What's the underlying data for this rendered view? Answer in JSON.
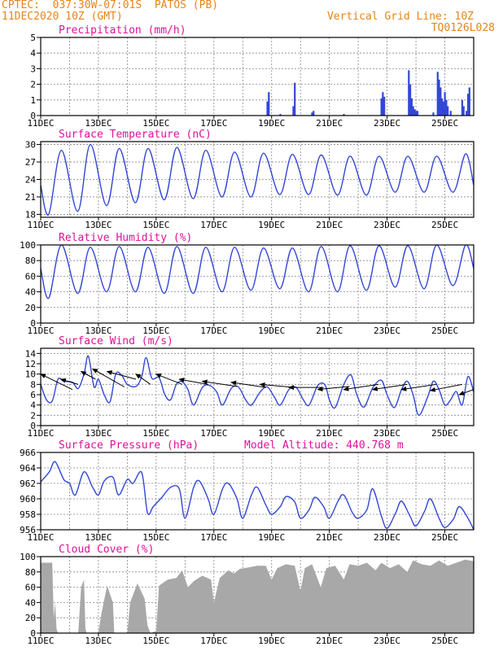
{
  "header": {
    "station_line": "CPTEC:  037:30W-07:01S  PATOS (PB)",
    "date_line": "11DEC2020 10Z (GMT)",
    "grid_line": "Vertical Grid Line: 10Z",
    "code": "TQ0126L028"
  },
  "colors": {
    "header": "#e8841a",
    "title": "#e0109a",
    "series": "#3347d6",
    "cloud": "#a8a8a8",
    "grid": "#888888"
  },
  "x_axis": {
    "start_day": 11,
    "end_day": 26,
    "ticks": [
      "11DEC",
      "13DEC",
      "15DEC",
      "17DEC",
      "19DEC",
      "21DEC",
      "23DEC",
      "25DEC"
    ],
    "tick_days": [
      11,
      13,
      15,
      17,
      19,
      21,
      23,
      25
    ]
  },
  "chart_data": [
    {
      "type": "bar",
      "title": "Precipitation (mm/h)",
      "ylim": [
        0,
        5
      ],
      "yticks": [
        "0",
        "1",
        "2",
        "3",
        "4",
        "5"
      ],
      "bars": [
        {
          "x": 18.85,
          "y": 0.9
        },
        {
          "x": 18.9,
          "y": 1.5
        },
        {
          "x": 19.3,
          "y": 0.1
        },
        {
          "x": 19.75,
          "y": 0.6
        },
        {
          "x": 19.8,
          "y": 2.1
        },
        {
          "x": 20.4,
          "y": 0.2
        },
        {
          "x": 20.45,
          "y": 0.3
        },
        {
          "x": 21.5,
          "y": 0.1
        },
        {
          "x": 22.8,
          "y": 1.1
        },
        {
          "x": 22.85,
          "y": 1.5
        },
        {
          "x": 22.9,
          "y": 1.2
        },
        {
          "x": 23.75,
          "y": 2.9
        },
        {
          "x": 23.8,
          "y": 2.0
        },
        {
          "x": 23.85,
          "y": 1.1
        },
        {
          "x": 23.9,
          "y": 0.6
        },
        {
          "x": 23.95,
          "y": 0.4
        },
        {
          "x": 24.0,
          "y": 0.3
        },
        {
          "x": 24.05,
          "y": 0.3
        },
        {
          "x": 24.6,
          "y": 0.2
        },
        {
          "x": 24.75,
          "y": 2.8
        },
        {
          "x": 24.8,
          "y": 2.3
        },
        {
          "x": 24.85,
          "y": 1.8
        },
        {
          "x": 24.9,
          "y": 1.1
        },
        {
          "x": 24.95,
          "y": 0.9
        },
        {
          "x": 25.0,
          "y": 1.5
        },
        {
          "x": 25.05,
          "y": 1.0
        },
        {
          "x": 25.1,
          "y": 0.6
        },
        {
          "x": 25.2,
          "y": 0.3
        },
        {
          "x": 25.6,
          "y": 1.0
        },
        {
          "x": 25.65,
          "y": 0.6
        },
        {
          "x": 25.75,
          "y": 0.3
        },
        {
          "x": 25.8,
          "y": 1.4
        },
        {
          "x": 25.85,
          "y": 1.8
        }
      ]
    },
    {
      "type": "line",
      "title": "Surface Temperature (nC)",
      "ylim": [
        17.5,
        30.5
      ],
      "yticks": [
        "18",
        "21",
        "24",
        "27",
        "30"
      ],
      "daily_max": [
        29,
        30,
        29.3,
        29.3,
        29.5,
        29,
        28.7,
        28.5,
        28.3,
        28.2,
        28,
        28,
        28,
        28,
        28.4
      ],
      "daily_min": [
        18,
        18.5,
        19.5,
        20,
        20.5,
        20.7,
        21,
        21,
        21.4,
        21.4,
        21.3,
        21.3,
        21.8,
        21.8,
        21.8
      ],
      "start_value": 23
    },
    {
      "type": "line",
      "title": "Relative Humidity (%)",
      "ylim": [
        0,
        100
      ],
      "yticks": [
        "0",
        "20",
        "40",
        "60",
        "80",
        "100"
      ],
      "daily_max": [
        100,
        97,
        98,
        97,
        98,
        97,
        97,
        96,
        96,
        98,
        99,
        99,
        99,
        100,
        100
      ],
      "daily_min": [
        32,
        38,
        40,
        40,
        38,
        38,
        40,
        42,
        44,
        40,
        40,
        42,
        46,
        44,
        48
      ],
      "start_value": 70
    },
    {
      "type": "line",
      "title": "Surface Wind (m/s)",
      "ylim": [
        0,
        15
      ],
      "yticks": [
        "0",
        "2",
        "4",
        "6",
        "8",
        "10",
        "12",
        "14"
      ],
      "series": [
        {
          "x": 11.0,
          "y": 8
        },
        {
          "x": 11.2,
          "y": 5
        },
        {
          "x": 11.4,
          "y": 4.8
        },
        {
          "x": 11.6,
          "y": 9
        },
        {
          "x": 11.8,
          "y": 8.6
        },
        {
          "x": 12.1,
          "y": 8.4
        },
        {
          "x": 12.3,
          "y": 7.2
        },
        {
          "x": 12.5,
          "y": 10
        },
        {
          "x": 12.65,
          "y": 13.5
        },
        {
          "x": 12.85,
          "y": 7.5
        },
        {
          "x": 13.0,
          "y": 9
        },
        {
          "x": 13.2,
          "y": 6
        },
        {
          "x": 13.4,
          "y": 4.6
        },
        {
          "x": 13.6,
          "y": 10
        },
        {
          "x": 13.8,
          "y": 9.8
        },
        {
          "x": 14.0,
          "y": 8
        },
        {
          "x": 14.3,
          "y": 7.6
        },
        {
          "x": 14.5,
          "y": 9.5
        },
        {
          "x": 14.65,
          "y": 13.2
        },
        {
          "x": 14.85,
          "y": 9.2
        },
        {
          "x": 15.1,
          "y": 9.3
        },
        {
          "x": 15.3,
          "y": 6
        },
        {
          "x": 15.5,
          "y": 5
        },
        {
          "x": 15.7,
          "y": 8
        },
        {
          "x": 15.9,
          "y": 8.5
        },
        {
          "x": 16.1,
          "y": 7
        },
        {
          "x": 16.3,
          "y": 4
        },
        {
          "x": 16.6,
          "y": 7.4
        },
        {
          "x": 16.85,
          "y": 7.8
        },
        {
          "x": 17.1,
          "y": 6.5
        },
        {
          "x": 17.3,
          "y": 4
        },
        {
          "x": 17.6,
          "y": 7.2
        },
        {
          "x": 17.85,
          "y": 7.5
        },
        {
          "x": 18.1,
          "y": 5
        },
        {
          "x": 18.3,
          "y": 4
        },
        {
          "x": 18.6,
          "y": 6.5
        },
        {
          "x": 18.85,
          "y": 7.5
        },
        {
          "x": 19.1,
          "y": 5.5
        },
        {
          "x": 19.3,
          "y": 4
        },
        {
          "x": 19.6,
          "y": 7
        },
        {
          "x": 19.85,
          "y": 7.4
        },
        {
          "x": 20.1,
          "y": 5
        },
        {
          "x": 20.3,
          "y": 4
        },
        {
          "x": 20.6,
          "y": 7.8
        },
        {
          "x": 20.85,
          "y": 7.9
        },
        {
          "x": 21.0,
          "y": 5
        },
        {
          "x": 21.2,
          "y": 3.5
        },
        {
          "x": 21.5,
          "y": 8
        },
        {
          "x": 21.75,
          "y": 9.8
        },
        {
          "x": 21.95,
          "y": 6
        },
        {
          "x": 22.2,
          "y": 3.6
        },
        {
          "x": 22.5,
          "y": 7.3
        },
        {
          "x": 22.8,
          "y": 8.8
        },
        {
          "x": 23.0,
          "y": 6
        },
        {
          "x": 23.25,
          "y": 3.5
        },
        {
          "x": 23.5,
          "y": 7
        },
        {
          "x": 23.7,
          "y": 8.6
        },
        {
          "x": 23.9,
          "y": 6
        },
        {
          "x": 24.1,
          "y": 2
        },
        {
          "x": 24.4,
          "y": 5.5
        },
        {
          "x": 24.6,
          "y": 8.6
        },
        {
          "x": 24.8,
          "y": 7
        },
        {
          "x": 25.0,
          "y": 4
        },
        {
          "x": 25.2,
          "y": 5
        },
        {
          "x": 25.4,
          "y": 6.6
        },
        {
          "x": 25.6,
          "y": 4
        },
        {
          "x": 25.8,
          "y": 9.5
        },
        {
          "x": 26.0,
          "y": 6.5
        }
      ],
      "arrows": [
        {
          "x0": 12.1,
          "y0": 7,
          "x1": 11.0,
          "y1": 10
        },
        {
          "x0": 12.3,
          "y0": 8,
          "x1": 11.7,
          "y1": 9
        },
        {
          "x0": 12.9,
          "y0": 9,
          "x1": 12.4,
          "y1": 10.5
        },
        {
          "x0": 13.9,
          "y0": 7.5,
          "x1": 12.8,
          "y1": 11
        },
        {
          "x0": 14.3,
          "y0": 9,
          "x1": 13.3,
          "y1": 10.5
        },
        {
          "x0": 14.8,
          "y0": 8,
          "x1": 14.3,
          "y1": 10
        },
        {
          "x0": 15.9,
          "y0": 8,
          "x1": 15.0,
          "y1": 10
        },
        {
          "x0": 16.8,
          "y0": 8,
          "x1": 15.8,
          "y1": 9
        },
        {
          "x0": 17.8,
          "y0": 7.6,
          "x1": 16.6,
          "y1": 8.6
        },
        {
          "x0": 18.8,
          "y0": 7.4,
          "x1": 17.6,
          "y1": 8.4
        },
        {
          "x0": 19.8,
          "y0": 7.4,
          "x1": 18.6,
          "y1": 8
        },
        {
          "x0": 20.8,
          "y0": 7.4,
          "x1": 19.6,
          "y1": 7.4
        },
        {
          "x0": 21.7,
          "y0": 7.6,
          "x1": 20.6,
          "y1": 7
        },
        {
          "x0": 22.7,
          "y0": 8,
          "x1": 21.5,
          "y1": 7
        },
        {
          "x0": 23.7,
          "y0": 8,
          "x1": 22.5,
          "y1": 7
        },
        {
          "x0": 24.7,
          "y0": 8,
          "x1": 23.5,
          "y1": 7
        },
        {
          "x0": 25.6,
          "y0": 8,
          "x1": 24.5,
          "y1": 6.8
        },
        {
          "x0": 26.0,
          "y0": 7,
          "x1": 25.5,
          "y1": 6
        }
      ]
    },
    {
      "type": "line",
      "title": "Surface Pressure (hPa)",
      "annotation": "Model Altitude: 440.768  m",
      "ylim": [
        956,
        966
      ],
      "yticks": [
        "956",
        "958",
        "960",
        "962",
        "964",
        "966"
      ],
      "series": [
        {
          "x": 11.0,
          "y": 962.2
        },
        {
          "x": 11.3,
          "y": 963.5
        },
        {
          "x": 11.5,
          "y": 964.8
        },
        {
          "x": 11.8,
          "y": 962.5
        },
        {
          "x": 12.0,
          "y": 962
        },
        {
          "x": 12.2,
          "y": 960.5
        },
        {
          "x": 12.5,
          "y": 963.5
        },
        {
          "x": 12.8,
          "y": 961.5
        },
        {
          "x": 13.0,
          "y": 960.5
        },
        {
          "x": 13.2,
          "y": 962.3
        },
        {
          "x": 13.5,
          "y": 962.8
        },
        {
          "x": 13.7,
          "y": 960.5
        },
        {
          "x": 14.0,
          "y": 962.5
        },
        {
          "x": 14.2,
          "y": 962
        },
        {
          "x": 14.5,
          "y": 963.4
        },
        {
          "x": 14.7,
          "y": 958.2
        },
        {
          "x": 14.9,
          "y": 959
        },
        {
          "x": 15.2,
          "y": 960.2
        },
        {
          "x": 15.5,
          "y": 961.5
        },
        {
          "x": 15.8,
          "y": 961.3
        },
        {
          "x": 16.0,
          "y": 957.5
        },
        {
          "x": 16.3,
          "y": 961.5
        },
        {
          "x": 16.5,
          "y": 962.3
        },
        {
          "x": 16.8,
          "y": 960
        },
        {
          "x": 17.0,
          "y": 958
        },
        {
          "x": 17.3,
          "y": 961.3
        },
        {
          "x": 17.5,
          "y": 962
        },
        {
          "x": 17.8,
          "y": 960
        },
        {
          "x": 18.0,
          "y": 957.5
        },
        {
          "x": 18.3,
          "y": 960.5
        },
        {
          "x": 18.5,
          "y": 961.5
        },
        {
          "x": 18.8,
          "y": 959.2
        },
        {
          "x": 19.0,
          "y": 958
        },
        {
          "x": 19.3,
          "y": 959
        },
        {
          "x": 19.5,
          "y": 960.3
        },
        {
          "x": 19.8,
          "y": 959.6
        },
        {
          "x": 20.0,
          "y": 957.5
        },
        {
          "x": 20.3,
          "y": 958.6
        },
        {
          "x": 20.5,
          "y": 960.2
        },
        {
          "x": 20.8,
          "y": 959
        },
        {
          "x": 21.0,
          "y": 957.5
        },
        {
          "x": 21.3,
          "y": 959.7
        },
        {
          "x": 21.5,
          "y": 960.5
        },
        {
          "x": 21.8,
          "y": 958.2
        },
        {
          "x": 22.0,
          "y": 957.5
        },
        {
          "x": 22.3,
          "y": 958.6
        },
        {
          "x": 22.5,
          "y": 961.3
        },
        {
          "x": 22.8,
          "y": 957.8
        },
        {
          "x": 23.0,
          "y": 956.2
        },
        {
          "x": 23.3,
          "y": 958.2
        },
        {
          "x": 23.5,
          "y": 959.7
        },
        {
          "x": 23.8,
          "y": 957.7
        },
        {
          "x": 24.0,
          "y": 956.5
        },
        {
          "x": 24.3,
          "y": 958.4
        },
        {
          "x": 24.5,
          "y": 960
        },
        {
          "x": 24.8,
          "y": 957.5
        },
        {
          "x": 25.0,
          "y": 956.3
        },
        {
          "x": 25.3,
          "y": 957.4
        },
        {
          "x": 25.5,
          "y": 959
        },
        {
          "x": 25.8,
          "y": 957.5
        },
        {
          "x": 26.0,
          "y": 956
        }
      ]
    },
    {
      "type": "area",
      "title": "Cloud Cover (%)",
      "ylim": [
        0,
        100
      ],
      "yticks": [
        "0",
        "20",
        "40",
        "60",
        "80",
        "100"
      ],
      "series": [
        {
          "x": 11.0,
          "y": 92
        },
        {
          "x": 11.4,
          "y": 92
        },
        {
          "x": 11.45,
          "y": 20
        },
        {
          "x": 11.5,
          "y": 40
        },
        {
          "x": 11.55,
          "y": 5
        },
        {
          "x": 11.6,
          "y": 0
        },
        {
          "x": 12.3,
          "y": 0
        },
        {
          "x": 12.4,
          "y": 60
        },
        {
          "x": 12.5,
          "y": 70
        },
        {
          "x": 12.55,
          "y": 5
        },
        {
          "x": 12.6,
          "y": 0
        },
        {
          "x": 13.0,
          "y": 0
        },
        {
          "x": 13.1,
          "y": 25
        },
        {
          "x": 13.3,
          "y": 62
        },
        {
          "x": 13.5,
          "y": 40
        },
        {
          "x": 13.55,
          "y": 0
        },
        {
          "x": 14.0,
          "y": 0
        },
        {
          "x": 14.1,
          "y": 40
        },
        {
          "x": 14.35,
          "y": 65
        },
        {
          "x": 14.6,
          "y": 45
        },
        {
          "x": 14.7,
          "y": 10
        },
        {
          "x": 14.8,
          "y": 0
        },
        {
          "x": 15.0,
          "y": 3
        },
        {
          "x": 15.1,
          "y": 62
        },
        {
          "x": 15.4,
          "y": 70
        },
        {
          "x": 15.7,
          "y": 72
        },
        {
          "x": 15.9,
          "y": 82
        },
        {
          "x": 16.1,
          "y": 60
        },
        {
          "x": 16.3,
          "y": 68
        },
        {
          "x": 16.6,
          "y": 75
        },
        {
          "x": 16.9,
          "y": 70
        },
        {
          "x": 17.0,
          "y": 40
        },
        {
          "x": 17.2,
          "y": 72
        },
        {
          "x": 17.5,
          "y": 82
        },
        {
          "x": 17.7,
          "y": 78
        },
        {
          "x": 17.9,
          "y": 84
        },
        {
          "x": 18.2,
          "y": 86
        },
        {
          "x": 18.5,
          "y": 88
        },
        {
          "x": 18.8,
          "y": 88
        },
        {
          "x": 19.0,
          "y": 70
        },
        {
          "x": 19.2,
          "y": 85
        },
        {
          "x": 19.5,
          "y": 90
        },
        {
          "x": 19.8,
          "y": 88
        },
        {
          "x": 20.0,
          "y": 55
        },
        {
          "x": 20.15,
          "y": 85
        },
        {
          "x": 20.4,
          "y": 90
        },
        {
          "x": 20.7,
          "y": 60
        },
        {
          "x": 20.9,
          "y": 85
        },
        {
          "x": 21.2,
          "y": 88
        },
        {
          "x": 21.5,
          "y": 70
        },
        {
          "x": 21.7,
          "y": 90
        },
        {
          "x": 22.0,
          "y": 88
        },
        {
          "x": 22.3,
          "y": 92
        },
        {
          "x": 22.6,
          "y": 82
        },
        {
          "x": 22.8,
          "y": 92
        },
        {
          "x": 23.1,
          "y": 85
        },
        {
          "x": 23.4,
          "y": 90
        },
        {
          "x": 23.7,
          "y": 80
        },
        {
          "x": 23.9,
          "y": 95
        },
        {
          "x": 24.2,
          "y": 90
        },
        {
          "x": 24.5,
          "y": 88
        },
        {
          "x": 24.8,
          "y": 95
        },
        {
          "x": 25.1,
          "y": 88
        },
        {
          "x": 25.4,
          "y": 92
        },
        {
          "x": 25.7,
          "y": 96
        },
        {
          "x": 26.0,
          "y": 94
        }
      ]
    }
  ]
}
